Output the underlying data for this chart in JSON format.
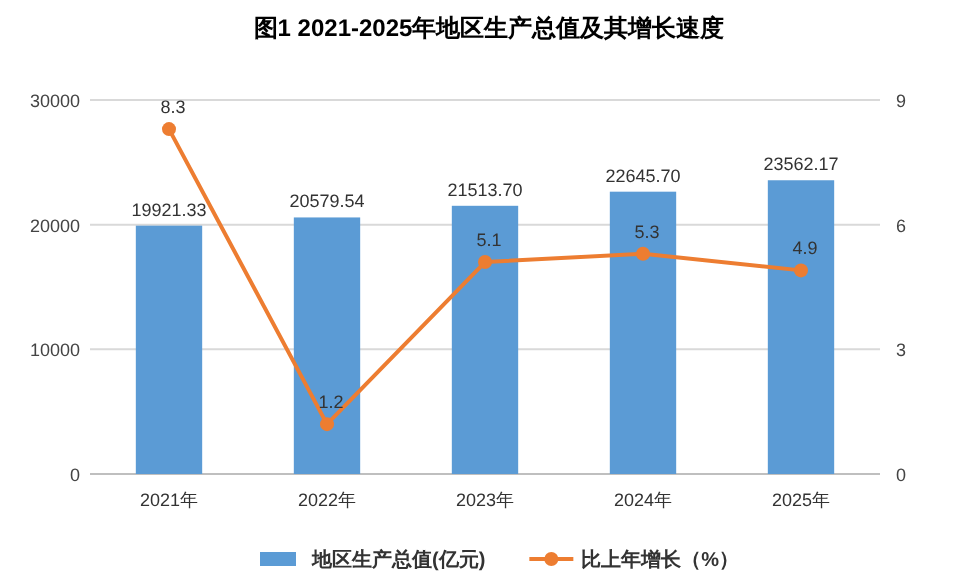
{
  "chart_data": {
    "type": "bar",
    "title": "图1    2021-2025年地区生产总值及其增长速度",
    "categories": [
      "2021年",
      "2022年",
      "2023年",
      "2024年",
      "2025年"
    ],
    "series": [
      {
        "name": "地区生产总值(亿元)",
        "color": "#5b9bd5",
        "values": [
          19921.33,
          20579.54,
          21513.7,
          22645.7,
          23562.17
        ],
        "value_labels": [
          "19921.33",
          "20579.54",
          "21513.70",
          "22645.70",
          "23562.17"
        ]
      },
      {
        "name": "比上年增长（%）",
        "type": "line",
        "axis": "y2",
        "color": "#ed7d31",
        "marker": "circle",
        "values": [
          8.3,
          1.2,
          5.1,
          5.3,
          4.9
        ],
        "value_labels": [
          "8.3",
          "1.2",
          "5.1",
          "5.3",
          "4.9"
        ]
      }
    ],
    "ylim": [
      0,
      30000
    ],
    "yticks": [
      0,
      10000,
      20000,
      30000
    ],
    "y2lim": [
      0,
      9
    ],
    "y2ticks": [
      0,
      3,
      6,
      9
    ],
    "grid": "y",
    "legend": "bottom"
  }
}
